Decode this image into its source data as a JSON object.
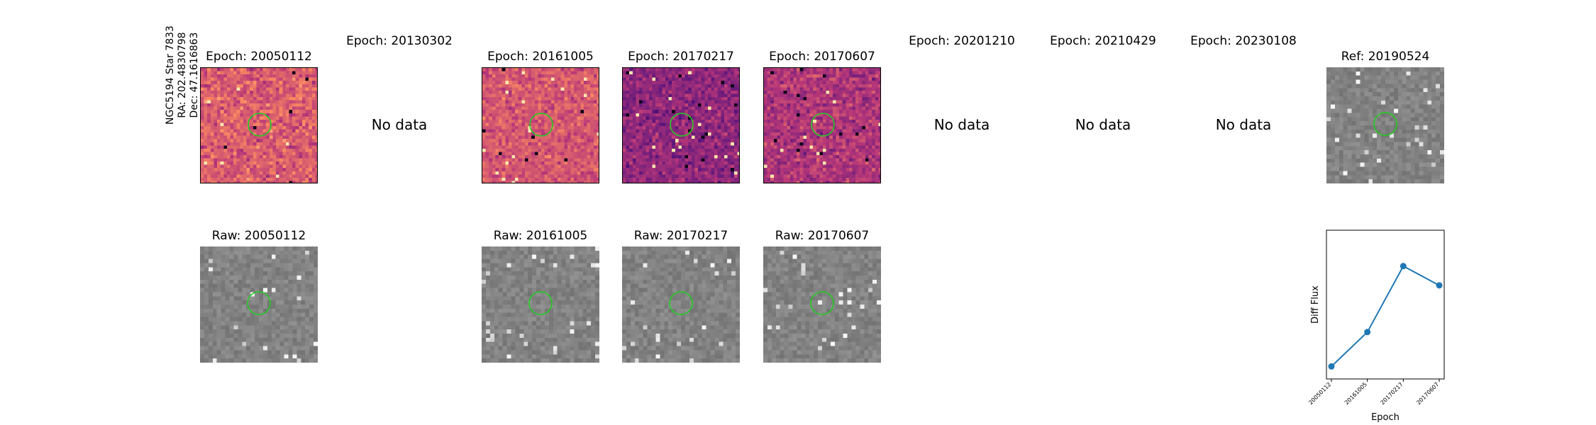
{
  "star_label": {
    "name": "NGC5194 Star 7833",
    "ra": "RA: 202.4830798",
    "dec": "Dec: 47.1616863"
  },
  "no_data_text": "No data",
  "epoch_titles": [
    "Epoch: 20050112",
    "Epoch: 20130302",
    "Epoch: 20161005",
    "Epoch: 20170217",
    "Epoch: 20170607",
    "Epoch: 20201210",
    "Epoch: 20210429",
    "Epoch: 20230108"
  ],
  "ref_title": "Ref: 20190524",
  "raw_titles": [
    "Raw: 20050112",
    "Raw: 20161005",
    "Raw: 20170217",
    "Raw: 20170607"
  ],
  "colors": {
    "circle": "#22cc22",
    "series": "#1f77b4"
  },
  "chart_data": {
    "type": "line",
    "categories": [
      "20050112",
      "20161005",
      "20170217",
      "20170607"
    ],
    "values": [
      0.05,
      0.3,
      0.78,
      0.64
    ],
    "ylabel": "Diff Flux",
    "xlabel": "Epoch",
    "yticks_shown": false,
    "grid": false
  }
}
